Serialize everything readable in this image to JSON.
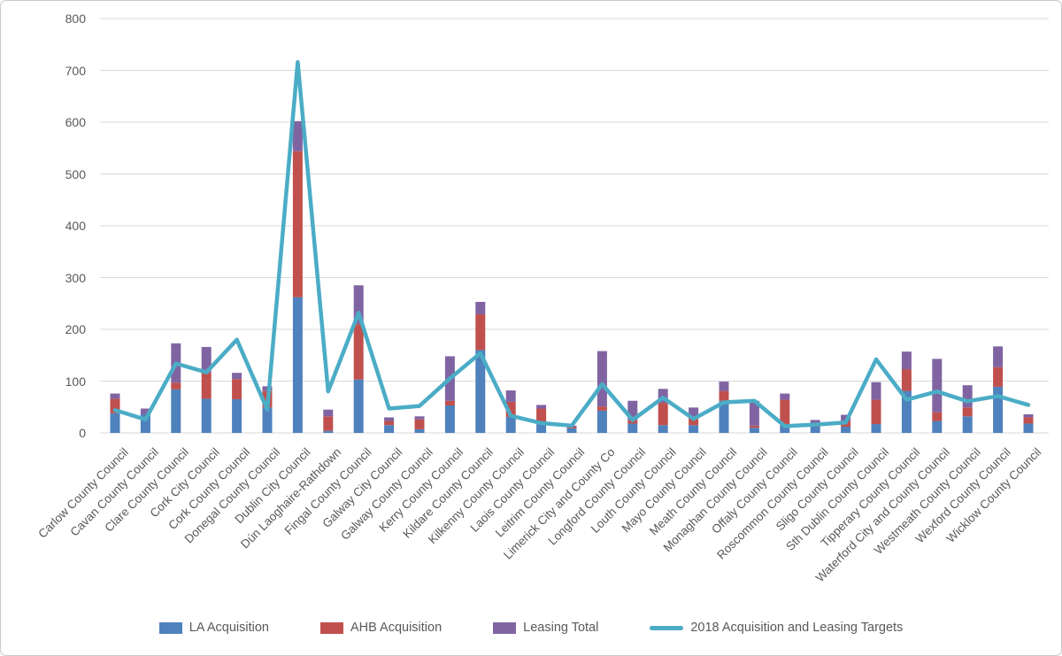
{
  "chart_data": {
    "type": "bar",
    "subtype": "stacked-bar-with-line-overlay",
    "title": "",
    "xlabel": "",
    "ylabel": "",
    "ylim": [
      0,
      800
    ],
    "ytick_interval": 100,
    "grid": true,
    "legend_position": "bottom",
    "colors": {
      "la_acquisition": "#4F81BD",
      "ahb_acquisition": "#C0504D",
      "leasing_total": "#8064A2",
      "targets_line": "#4BACC6",
      "gridline": "#D9D9D9",
      "axis_text": "#595959"
    },
    "categories": [
      "Carlow County Council",
      "Cavan County Council",
      "Clare County Council",
      "Cork City Council",
      "Cork County Council",
      "Donegal County Council",
      "Dublin City Council",
      "Dún Laoghaire-Rathdown",
      "Fingal County Council",
      "Galway City Council",
      "Galway County Council",
      "Kerry County Council",
      "Kildare County Council",
      "Kilkenny County Council",
      "Laois County Council",
      "Leitrim County Council",
      "Limerick City and County Co",
      "Longford County Council",
      "Louth County Council",
      "Mayo County Council",
      "Meath County Council",
      "Monaghan County Council",
      "Offaly County Council",
      "Roscommon County Council",
      "Sligo County Council",
      "Sth Dublin County Council",
      "Tipperary County Council",
      "Waterford City and County Council",
      "Westmeath County Council",
      "Wexford County Council",
      "Wicklow County Council"
    ],
    "series": [
      {
        "name": "LA Acquisition",
        "kind": "bar",
        "color": "#4F81BD",
        "values": [
          38,
          36,
          84,
          66,
          65,
          49,
          262,
          4,
          103,
          15,
          7,
          53,
          160,
          31,
          20,
          9,
          43,
          18,
          15,
          15,
          62,
          10,
          14,
          12,
          12,
          17,
          81,
          23,
          32,
          89,
          18
        ]
      },
      {
        "name": "AHB Acquisition",
        "kind": "bar",
        "color": "#C0504D",
        "values": [
          28,
          0,
          13,
          50,
          39,
          32,
          282,
          28,
          107,
          8,
          19,
          9,
          69,
          29,
          27,
          3,
          8,
          6,
          43,
          17,
          19,
          4,
          50,
          7,
          11,
          47,
          42,
          17,
          17,
          38,
          12
        ]
      },
      {
        "name": "Leasing Total",
        "kind": "bar",
        "color": "#8064A2",
        "values": [
          10,
          11,
          76,
          50,
          12,
          9,
          58,
          13,
          75,
          7,
          6,
          86,
          24,
          22,
          7,
          2,
          107,
          38,
          27,
          17,
          18,
          48,
          12,
          6,
          12,
          34,
          34,
          103,
          43,
          40,
          6
        ]
      },
      {
        "name": "2018 Acquisition and Leasing Targets",
        "kind": "line",
        "color": "#4BACC6",
        "values": [
          44,
          26,
          134,
          117,
          180,
          45,
          716,
          80,
          232,
          47,
          52,
          105,
          154,
          33,
          19,
          14,
          94,
          25,
          68,
          27,
          59,
          62,
          13,
          16,
          20,
          142,
          64,
          80,
          61,
          71,
          54
        ]
      }
    ]
  }
}
